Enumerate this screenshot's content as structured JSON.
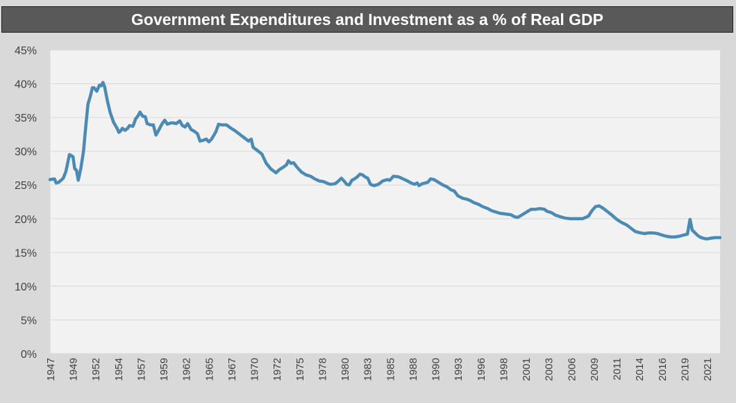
{
  "chart_data": {
    "type": "line",
    "title": "Government Expenditures and Investment as a % of Real GDP",
    "xlabel": "",
    "ylabel": "",
    "ylim": [
      0,
      45
    ],
    "grid": true,
    "legend": "none",
    "y_ticks": [
      "0%",
      "5%",
      "10%",
      "15%",
      "20%",
      "25%",
      "30%",
      "35%",
      "40%",
      "45%"
    ],
    "x_ticks": [
      "1947",
      "1949",
      "1952",
      "1954",
      "1957",
      "1959",
      "1962",
      "1965",
      "1967",
      "1970",
      "1972",
      "1975",
      "1978",
      "1980",
      "1983",
      "1985",
      "1988",
      "1990",
      "1993",
      "1996",
      "1998",
      "2001",
      "2003",
      "2006",
      "2009",
      "2011",
      "2014",
      "2016",
      "2019",
      "2021"
    ],
    "x_range": [
      1947.0,
      2022.9
    ],
    "colors": {
      "line": "#4a8ab5",
      "plot_bg": "#f2f2f2",
      "figure_bg": "#d9d9d9",
      "title_bg": "#595959",
      "title_text": "#ffffff",
      "grid": "#d9d9d9"
    },
    "series": [
      {
        "points": [
          [
            1947.0,
            25.8
          ],
          [
            1947.5,
            25.9
          ],
          [
            1947.7,
            25.3
          ],
          [
            1948.0,
            25.4
          ],
          [
            1948.5,
            26.0
          ],
          [
            1948.8,
            27.0
          ],
          [
            1949.2,
            29.5
          ],
          [
            1949.6,
            29.2
          ],
          [
            1949.8,
            27.4
          ],
          [
            1950.0,
            27.2
          ],
          [
            1950.2,
            25.7
          ],
          [
            1950.5,
            27.5
          ],
          [
            1950.8,
            30.0
          ],
          [
            1951.0,
            33.0
          ],
          [
            1951.3,
            37.0
          ],
          [
            1951.6,
            38.3
          ],
          [
            1951.8,
            39.4
          ],
          [
            1952.0,
            39.4
          ],
          [
            1952.3,
            38.9
          ],
          [
            1952.6,
            39.8
          ],
          [
            1952.8,
            39.7
          ],
          [
            1953.0,
            40.2
          ],
          [
            1953.2,
            39.5
          ],
          [
            1953.5,
            37.5
          ],
          [
            1953.8,
            35.8
          ],
          [
            1954.2,
            34.3
          ],
          [
            1954.6,
            33.4
          ],
          [
            1954.8,
            32.8
          ],
          [
            1955.0,
            33.0
          ],
          [
            1955.2,
            33.4
          ],
          [
            1955.5,
            33.1
          ],
          [
            1955.8,
            33.4
          ],
          [
            1956.0,
            33.8
          ],
          [
            1956.4,
            33.7
          ],
          [
            1956.7,
            34.8
          ],
          [
            1957.0,
            35.3
          ],
          [
            1957.2,
            35.8
          ],
          [
            1957.5,
            35.2
          ],
          [
            1957.8,
            35.1
          ],
          [
            1958.0,
            34.1
          ],
          [
            1958.4,
            33.9
          ],
          [
            1958.7,
            33.9
          ],
          [
            1959.0,
            32.4
          ],
          [
            1959.3,
            33.1
          ],
          [
            1959.7,
            34.1
          ],
          [
            1960.0,
            34.6
          ],
          [
            1960.3,
            34.0
          ],
          [
            1960.7,
            34.2
          ],
          [
            1961.0,
            34.2
          ],
          [
            1961.3,
            34.1
          ],
          [
            1961.7,
            34.5
          ],
          [
            1962.0,
            33.8
          ],
          [
            1962.3,
            33.6
          ],
          [
            1962.6,
            34.1
          ],
          [
            1963.0,
            33.2
          ],
          [
            1963.3,
            33.0
          ],
          [
            1963.7,
            32.6
          ],
          [
            1964.0,
            31.5
          ],
          [
            1964.3,
            31.6
          ],
          [
            1964.7,
            31.8
          ],
          [
            1965.0,
            31.4
          ],
          [
            1965.3,
            31.8
          ],
          [
            1965.8,
            32.9
          ],
          [
            1966.1,
            34.0
          ],
          [
            1966.5,
            33.9
          ],
          [
            1967.0,
            33.9
          ],
          [
            1967.4,
            33.5
          ],
          [
            1968.0,
            33.0
          ],
          [
            1968.6,
            32.4
          ],
          [
            1969.0,
            32.0
          ],
          [
            1969.5,
            31.5
          ],
          [
            1969.8,
            31.8
          ],
          [
            1970.0,
            30.6
          ],
          [
            1970.5,
            30.1
          ],
          [
            1971.0,
            29.6
          ],
          [
            1971.5,
            28.2
          ],
          [
            1972.0,
            27.4
          ],
          [
            1972.3,
            27.1
          ],
          [
            1972.6,
            26.8
          ],
          [
            1973.0,
            27.3
          ],
          [
            1973.5,
            27.7
          ],
          [
            1973.8,
            28.0
          ],
          [
            1974.0,
            28.6
          ],
          [
            1974.3,
            28.2
          ],
          [
            1974.6,
            28.3
          ],
          [
            1975.0,
            27.6
          ],
          [
            1975.5,
            26.9
          ],
          [
            1976.0,
            26.5
          ],
          [
            1976.5,
            26.3
          ],
          [
            1977.0,
            25.9
          ],
          [
            1977.5,
            25.6
          ],
          [
            1978.0,
            25.5
          ],
          [
            1978.5,
            25.2
          ],
          [
            1978.8,
            25.1
          ],
          [
            1979.3,
            25.2
          ],
          [
            1979.6,
            25.5
          ],
          [
            1980.0,
            26.0
          ],
          [
            1980.3,
            25.6
          ],
          [
            1980.6,
            25.1
          ],
          [
            1980.9,
            25.0
          ],
          [
            1981.2,
            25.7
          ],
          [
            1981.5,
            25.9
          ],
          [
            1981.8,
            26.2
          ],
          [
            1982.1,
            26.6
          ],
          [
            1982.4,
            26.5
          ],
          [
            1982.7,
            26.2
          ],
          [
            1983.0,
            26.0
          ],
          [
            1983.3,
            25.1
          ],
          [
            1983.7,
            24.9
          ],
          [
            1984.2,
            25.1
          ],
          [
            1984.7,
            25.6
          ],
          [
            1985.2,
            25.8
          ],
          [
            1985.5,
            25.7
          ],
          [
            1985.9,
            26.3
          ],
          [
            1986.5,
            26.2
          ],
          [
            1987.0,
            25.9
          ],
          [
            1987.5,
            25.6
          ],
          [
            1987.9,
            25.3
          ],
          [
            1988.3,
            25.1
          ],
          [
            1988.6,
            25.3
          ],
          [
            1988.8,
            24.9
          ],
          [
            1989.2,
            25.2
          ],
          [
            1989.8,
            25.4
          ],
          [
            1990.1,
            25.9
          ],
          [
            1990.5,
            25.8
          ],
          [
            1991.0,
            25.4
          ],
          [
            1991.5,
            25.0
          ],
          [
            1992.0,
            24.7
          ],
          [
            1992.4,
            24.3
          ],
          [
            1992.8,
            24.1
          ],
          [
            1993.2,
            23.4
          ],
          [
            1993.5,
            23.2
          ],
          [
            1993.8,
            23.0
          ],
          [
            1994.2,
            22.9
          ],
          [
            1994.6,
            22.7
          ],
          [
            1995.0,
            22.4
          ],
          [
            1995.6,
            22.1
          ],
          [
            1996.0,
            21.8
          ],
          [
            1996.6,
            21.5
          ],
          [
            1997.0,
            21.2
          ],
          [
            1997.5,
            21.0
          ],
          [
            1998.0,
            20.8
          ],
          [
            1998.6,
            20.7
          ],
          [
            1999.2,
            20.6
          ],
          [
            1999.6,
            20.3
          ],
          [
            2000.0,
            20.2
          ],
          [
            2000.5,
            20.6
          ],
          [
            2001.0,
            21.0
          ],
          [
            2001.5,
            21.4
          ],
          [
            2002.0,
            21.4
          ],
          [
            2002.5,
            21.5
          ],
          [
            2003.0,
            21.4
          ],
          [
            2003.3,
            21.1
          ],
          [
            2003.8,
            20.9
          ],
          [
            2004.3,
            20.5
          ],
          [
            2004.8,
            20.3
          ],
          [
            2005.3,
            20.1
          ],
          [
            2006.0,
            20.0
          ],
          [
            2006.6,
            20.0
          ],
          [
            2007.3,
            20.0
          ],
          [
            2007.7,
            20.2
          ],
          [
            2008.0,
            20.4
          ],
          [
            2008.4,
            21.2
          ],
          [
            2008.8,
            21.8
          ],
          [
            2009.2,
            21.9
          ],
          [
            2009.6,
            21.6
          ],
          [
            2010.0,
            21.2
          ],
          [
            2010.6,
            20.6
          ],
          [
            2011.2,
            19.9
          ],
          [
            2011.8,
            19.4
          ],
          [
            2012.3,
            19.1
          ],
          [
            2012.8,
            18.6
          ],
          [
            2013.3,
            18.1
          ],
          [
            2013.9,
            17.9
          ],
          [
            2014.4,
            17.8
          ],
          [
            2014.8,
            17.9
          ],
          [
            2015.3,
            17.9
          ],
          [
            2015.8,
            17.8
          ],
          [
            2016.3,
            17.6
          ],
          [
            2016.8,
            17.4
          ],
          [
            2017.3,
            17.3
          ],
          [
            2017.8,
            17.3
          ],
          [
            2018.3,
            17.4
          ],
          [
            2018.8,
            17.6
          ],
          [
            2019.2,
            17.7
          ],
          [
            2019.5,
            19.9
          ],
          [
            2019.75,
            18.3
          ],
          [
            2020.0,
            18.0
          ],
          [
            2020.3,
            17.6
          ],
          [
            2020.6,
            17.3
          ],
          [
            2021.0,
            17.1
          ],
          [
            2021.4,
            17.0
          ],
          [
            2021.8,
            17.1
          ],
          [
            2022.3,
            17.2
          ],
          [
            2022.9,
            17.2
          ]
        ]
      }
    ]
  }
}
